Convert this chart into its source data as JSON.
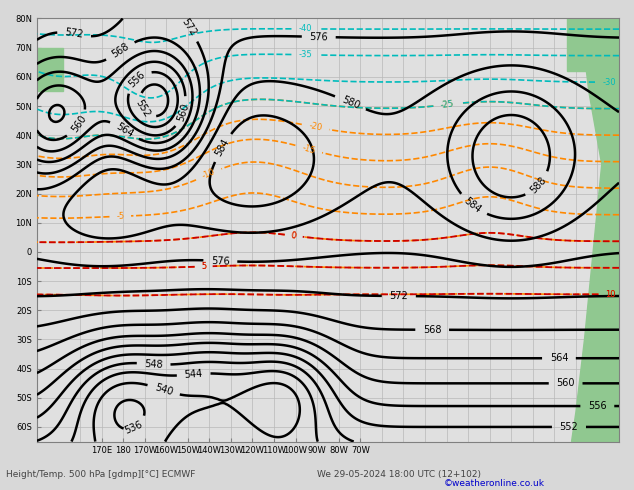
{
  "title_bottom": "Height/Temp. 500 hPa [gdmp][°C] ECMWF",
  "date_str": "We 29-05-2024 18:00 UTC (12+102)",
  "credit": "©weatheronline.co.uk",
  "background_color": "#d8d8d8",
  "map_bg": "#e0e0e0",
  "green_land_right": "#90c890",
  "green_land_left": "#90c890",
  "grid_color": "#b8b8b8",
  "bottom_label_color": "#444444",
  "credit_color": "#0000cc",
  "figsize": [
    6.34,
    4.9
  ],
  "dpi": 100,
  "xlim": [
    -200,
    70
  ],
  "ylim": [
    -65,
    80
  ]
}
